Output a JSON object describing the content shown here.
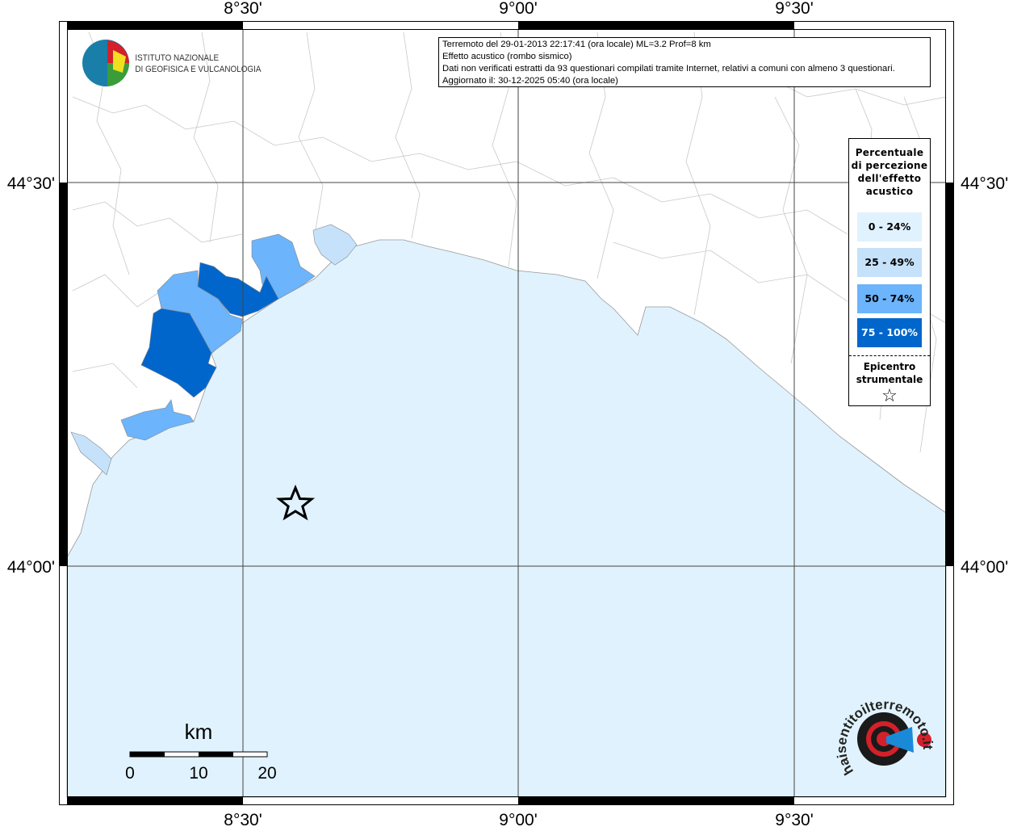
{
  "map": {
    "grid_labels_x": [
      "8°30'",
      "9°00'",
      "9°30'"
    ],
    "grid_labels_y": [
      "44°30'",
      "44°00'"
    ],
    "sea_color": "#e0f2fd",
    "land_color": "#ffffff"
  },
  "info": {
    "line1": "Terremoto del 29-01-2013 22:17:41 (ora locale) ML=3.2 Prof=8 km",
    "line2": "Effetto acustico (rombo sismico)",
    "line3": "Dati non verificati estratti da 93 questionari compilati tramite Internet, relativi a comuni con almeno 3 questionari.",
    "line4": "Aggiornato il: 30-12-2025 05:40 (ora locale)"
  },
  "legend": {
    "title": "Percentuale di percezione dell'effetto acustico",
    "classes": [
      {
        "label": "0 - 24%",
        "color": "#e0f2fd",
        "text_color": "#000000"
      },
      {
        "label": "25 - 49%",
        "color": "#c6e2fb",
        "text_color": "#000000"
      },
      {
        "label": "50 - 74%",
        "color": "#6cb4fb",
        "text_color": "#000000"
      },
      {
        "label": "75 - 100%",
        "color": "#0066cc",
        "text_color": "#ffffff"
      }
    ],
    "epicenter_label": "Epicentro strumentale",
    "epicenter_icon": "star-outline-icon"
  },
  "scalebar": {
    "unit": "km",
    "ticks": [
      "0",
      "10",
      "20"
    ]
  },
  "logos": {
    "ingv": "ISTITUTO NAZIONALE DI GEOFISICA E VULCANOLOGIA",
    "hsit": "www.haisentitoilterremoto.it"
  }
}
